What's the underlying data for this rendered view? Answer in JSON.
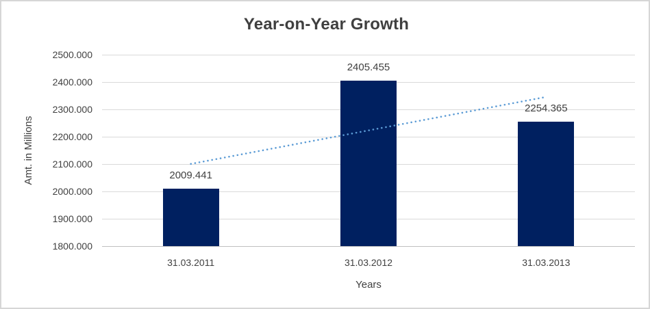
{
  "chart_data": {
    "type": "bar",
    "title": "Year-on-Year Growth",
    "xlabel": "Years",
    "ylabel": "Amt. in Millions",
    "categories": [
      "31.03.2011",
      "31.03.2012",
      "31.03.2013"
    ],
    "values": [
      2009.441,
      2405.455,
      2254.365
    ],
    "value_labels": [
      "2009.441",
      "2405.455",
      "2254.365"
    ],
    "ylim": [
      1800,
      2500
    ],
    "ytick_step": 100,
    "ytick_labels": [
      "2500.000",
      "2400.000",
      "2300.000",
      "2200.000",
      "2100.000",
      "2000.000",
      "1900.000",
      "1800.000"
    ],
    "grid": "horizontal",
    "legend": "none",
    "trendline": {
      "type": "linear",
      "style": "dotted",
      "start_value": 2100.6,
      "end_value": 2345.5,
      "color": "#5b9bd5"
    },
    "colors": {
      "bar": "#002060",
      "gridline": "#d9d9d9",
      "axis_line": "#bfbfbf",
      "text": "#404040",
      "border": "#d6d6d6",
      "background": "#ffffff"
    }
  }
}
